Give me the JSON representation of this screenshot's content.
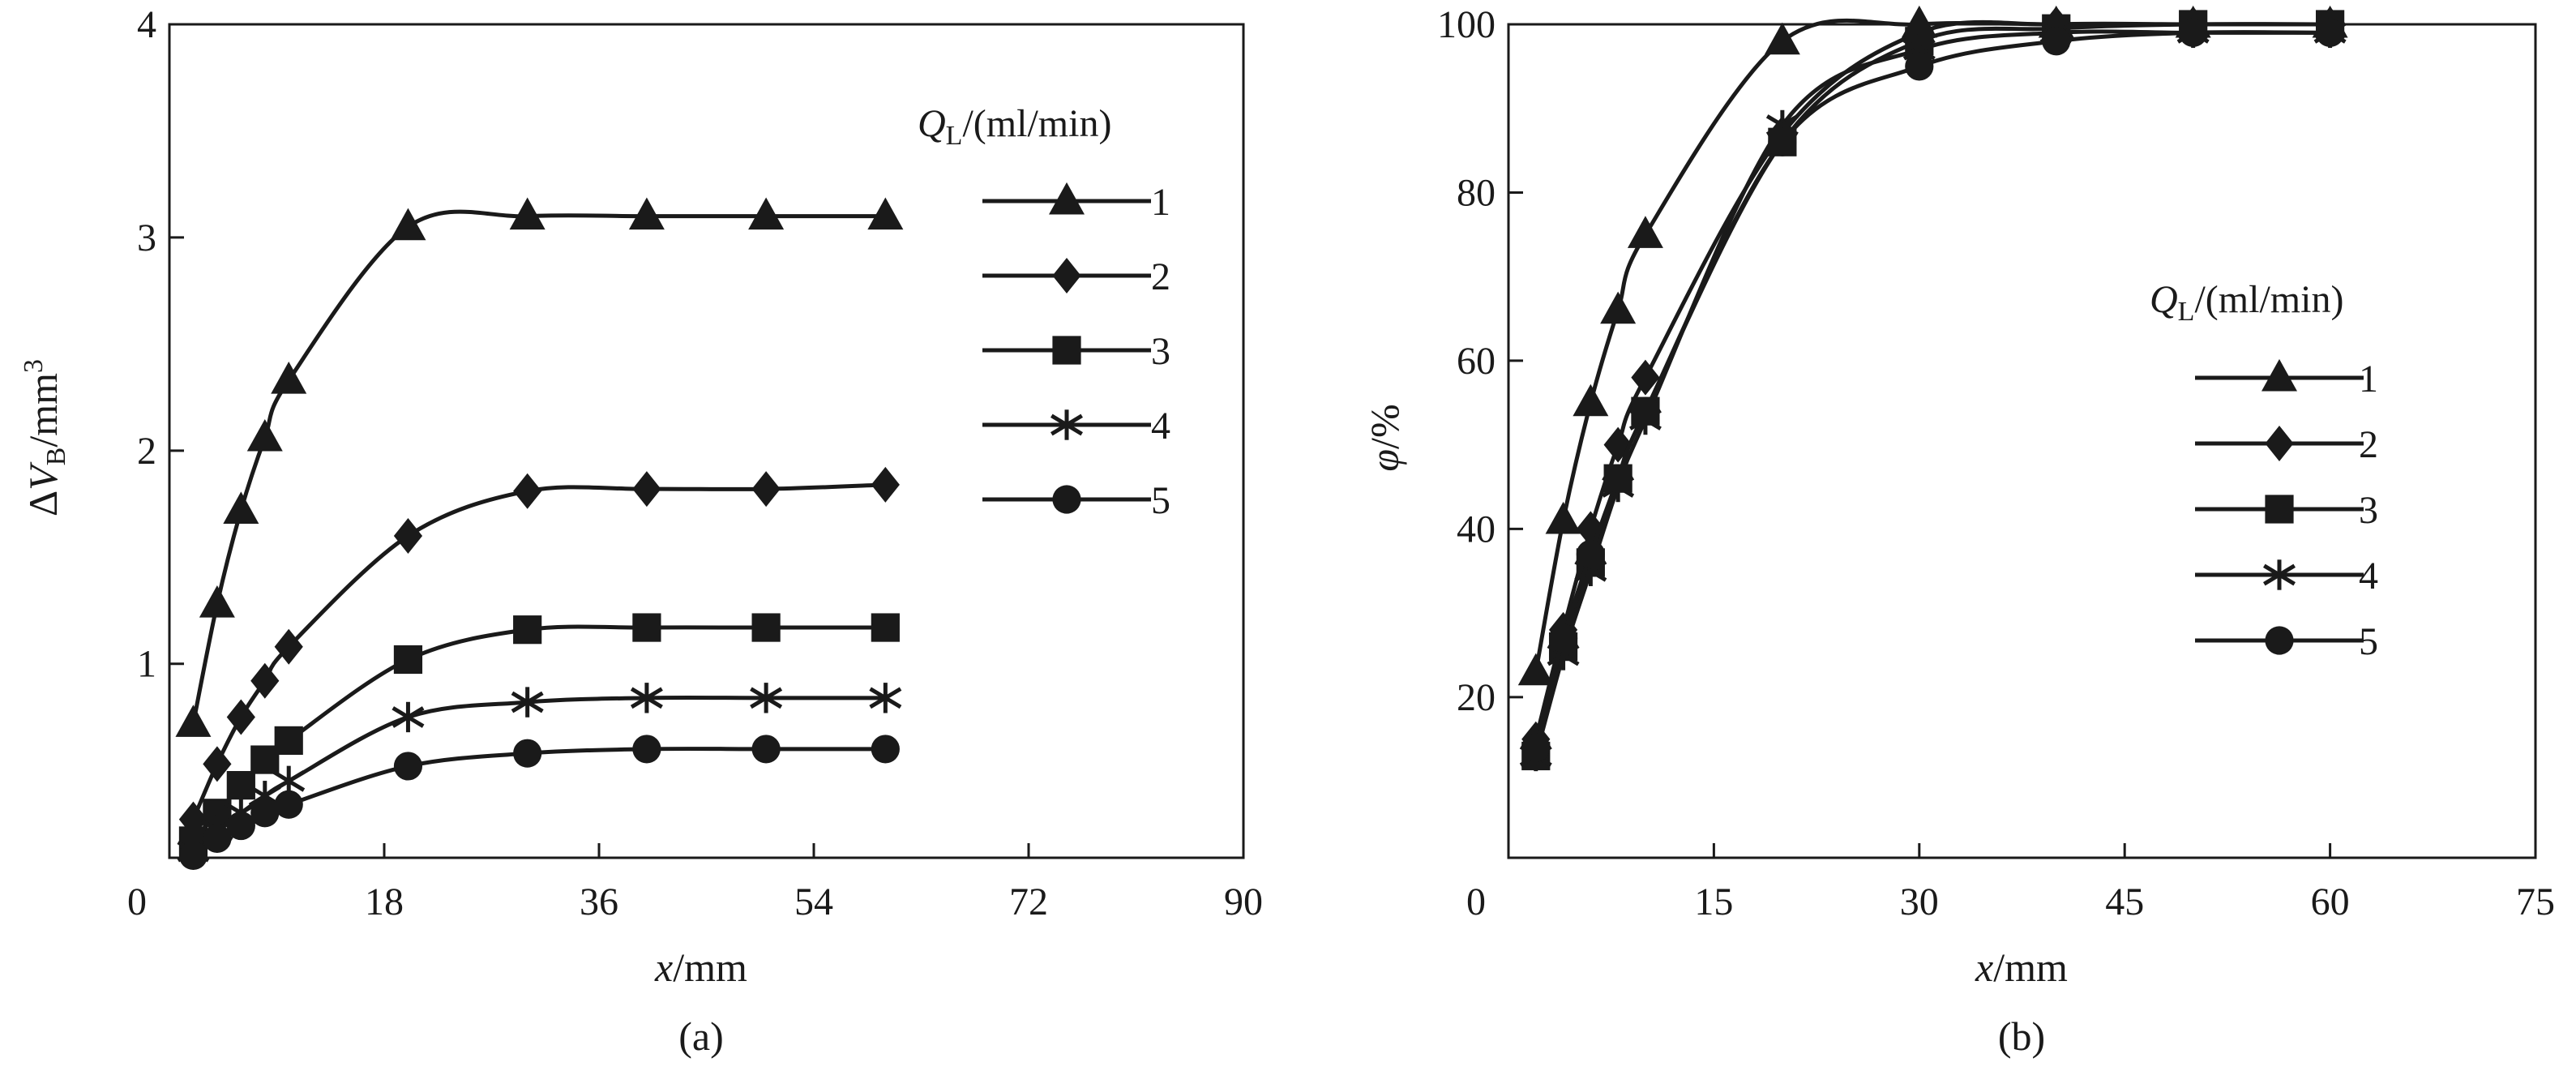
{
  "chart_data": [
    {
      "type": "line",
      "panel_label": "(a)",
      "xlabel": {
        "var": "x",
        "unit": "/mm"
      },
      "ylabel": {
        "prefix": "Δ",
        "var": "V",
        "sub": "B",
        "unit": "/mm",
        "sup": "3"
      },
      "xlim": [
        0,
        90
      ],
      "ylim": [
        0.09,
        4
      ],
      "xticks": [
        0,
        18,
        36,
        54,
        72,
        90
      ],
      "yticks": [
        1,
        2,
        3,
        4
      ],
      "grid": false,
      "legend": {
        "title_var": "Q",
        "title_sub": "L",
        "title_unit": "/(ml/min)",
        "placement": "top-right"
      },
      "x": [
        2,
        4,
        6,
        8,
        10,
        20,
        30,
        40,
        50,
        60
      ],
      "series": [
        {
          "name": "1",
          "marker": "triangle",
          "values": [
            0.72,
            1.28,
            1.72,
            2.06,
            2.33,
            3.05,
            3.1,
            3.1,
            3.1,
            3.1
          ]
        },
        {
          "name": "2",
          "marker": "diamond",
          "values": [
            0.27,
            0.53,
            0.75,
            0.92,
            1.08,
            1.6,
            1.81,
            1.82,
            1.82,
            1.84
          ]
        },
        {
          "name": "3",
          "marker": "square",
          "values": [
            0.17,
            0.3,
            0.43,
            0.55,
            0.64,
            1.02,
            1.16,
            1.17,
            1.17,
            1.17
          ]
        },
        {
          "name": "4",
          "marker": "asterisk",
          "values": [
            0.12,
            0.22,
            0.3,
            0.38,
            0.45,
            0.75,
            0.82,
            0.84,
            0.84,
            0.84
          ]
        },
        {
          "name": "5",
          "marker": "circle",
          "values": [
            0.1,
            0.18,
            0.24,
            0.3,
            0.34,
            0.52,
            0.58,
            0.6,
            0.6,
            0.6
          ]
        }
      ]
    },
    {
      "type": "line",
      "panel_label": "(b)",
      "xlabel": {
        "var": "x",
        "unit": "/mm"
      },
      "ylabel": {
        "var": "φ",
        "unit": "/%"
      },
      "xlim": [
        0,
        75
      ],
      "ylim": [
        0.9,
        100
      ],
      "xticks": [
        0,
        15,
        30,
        45,
        60,
        75
      ],
      "yticks": [
        20,
        40,
        60,
        80,
        100
      ],
      "grid": false,
      "legend": {
        "title_var": "Q",
        "title_sub": "L",
        "title_unit": "/(ml/min)",
        "placement": "center-right"
      },
      "x": [
        2,
        4,
        6,
        8,
        10,
        20,
        30,
        40,
        50,
        60
      ],
      "series": [
        {
          "name": "1",
          "marker": "triangle",
          "values": [
            23,
            41,
            55,
            66,
            75,
            98,
            100,
            100,
            100,
            100
          ]
        },
        {
          "name": "2",
          "marker": "diamond",
          "values": [
            15,
            28,
            40,
            50,
            58,
            87,
            99,
            100,
            100,
            100
          ]
        },
        {
          "name": "3",
          "marker": "square",
          "values": [
            13,
            26,
            36,
            46,
            54,
            86,
            98,
            99.5,
            100,
            100
          ]
        },
        {
          "name": "4",
          "marker": "asterisk",
          "values": [
            13,
            25,
            35,
            45,
            53,
            88,
            97,
            99,
            99,
            99
          ]
        },
        {
          "name": "5",
          "marker": "circle",
          "values": [
            14,
            27,
            37,
            46,
            54,
            86,
            95,
            98,
            99,
            99
          ]
        }
      ]
    }
  ]
}
